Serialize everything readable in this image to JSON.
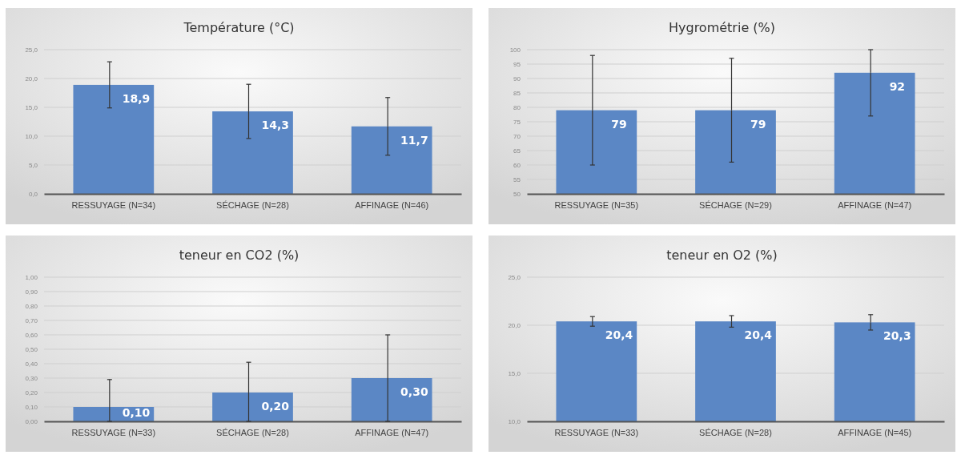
{
  "chart_data": [
    {
      "type": "bar",
      "title": "Température (°C)",
      "categories": [
        "RESSUYAGE (N=34)",
        "SÉCHAGE (N=28)",
        "AFFINAGE (N=46)"
      ],
      "values": [
        18.9,
        14.3,
        11.7
      ],
      "value_labels": [
        "18,9",
        "14,3",
        "11,7"
      ],
      "errors": [
        4.0,
        4.7,
        5.0
      ],
      "color": "#5b87c5",
      "ylim": [
        0,
        25
      ],
      "yticks": [
        {
          "value": 0,
          "label": "0,0"
        },
        {
          "value": 5,
          "label": "5,0"
        },
        {
          "value": 10,
          "label": "10,0"
        },
        {
          "value": 15,
          "label": "15,0"
        },
        {
          "value": 20,
          "label": "20,0"
        },
        {
          "value": 25,
          "label": "25,0"
        }
      ],
      "grid": "y"
    },
    {
      "type": "bar",
      "title": "Hygrométrie (%)",
      "categories": [
        "RESSUYAGE (N=35)",
        "SÉCHAGE (N=29)",
        "AFFINAGE (N=47)"
      ],
      "values": [
        79,
        79,
        92
      ],
      "data_labels": true,
      "errors": [
        19,
        18,
        [
          77,
          100
        ]
      ],
      "color": "#5b87c5",
      "ylim": [
        50,
        100
      ],
      "yticks": [
        50,
        55,
        60,
        65,
        70,
        75,
        80,
        85,
        90,
        95,
        100
      ],
      "grid": "y"
    },
    {
      "type": "bar",
      "title": "teneur en CO2 (%)",
      "categories": [
        "RESSUYAGE (N=33)",
        "SÉCHAGE (N=28)",
        "AFFINAGE (N=47)"
      ],
      "values": [
        0.1,
        0.2,
        0.3
      ],
      "value_labels": [
        "0,10",
        "0,20",
        "0,30"
      ],
      "errors": [
        [
          0,
          0.29
        ],
        [
          0,
          0.41
        ],
        [
          0,
          0.6
        ]
      ],
      "color": "#5b87c5",
      "ylim": [
        0,
        1
      ],
      "yticks": [
        {
          "value": 0,
          "label": "0,00"
        },
        {
          "value": 0.1,
          "label": "0,10"
        },
        {
          "value": 0.2,
          "label": "0,20"
        },
        {
          "value": 0.3,
          "label": "0,30"
        },
        {
          "value": 0.4,
          "label": "0,40"
        },
        {
          "value": 0.5,
          "label": "0,50"
        },
        {
          "value": 0.6,
          "label": "0,60"
        },
        {
          "value": 0.7,
          "label": "0,70"
        },
        {
          "value": 0.8,
          "label": "0,80"
        },
        {
          "value": 0.9,
          "label": "0,90"
        },
        {
          "value": 1,
          "label": "1,00"
        }
      ],
      "grid": "y"
    },
    {
      "type": "bar",
      "title": "teneur en O2 (%)",
      "categories": [
        "RESSUYAGE (N=33)",
        "SÉCHAGE (N=28)",
        "AFFINAGE (N=45)"
      ],
      "values": [
        20.4,
        20.4,
        20.3
      ],
      "value_labels": [
        "20,4",
        "20,4",
        "20,3"
      ],
      "errors": [
        0.5,
        0.6,
        0.8
      ],
      "color": "#5b87c5",
      "ylim": [
        10,
        25
      ],
      "yticks": [
        {
          "value": 10,
          "label": "10,0"
        },
        {
          "value": 15,
          "label": "15,0"
        },
        {
          "value": 20,
          "label": "20,0"
        },
        {
          "value": 25,
          "label": "25,0"
        }
      ],
      "grid": "y"
    }
  ]
}
